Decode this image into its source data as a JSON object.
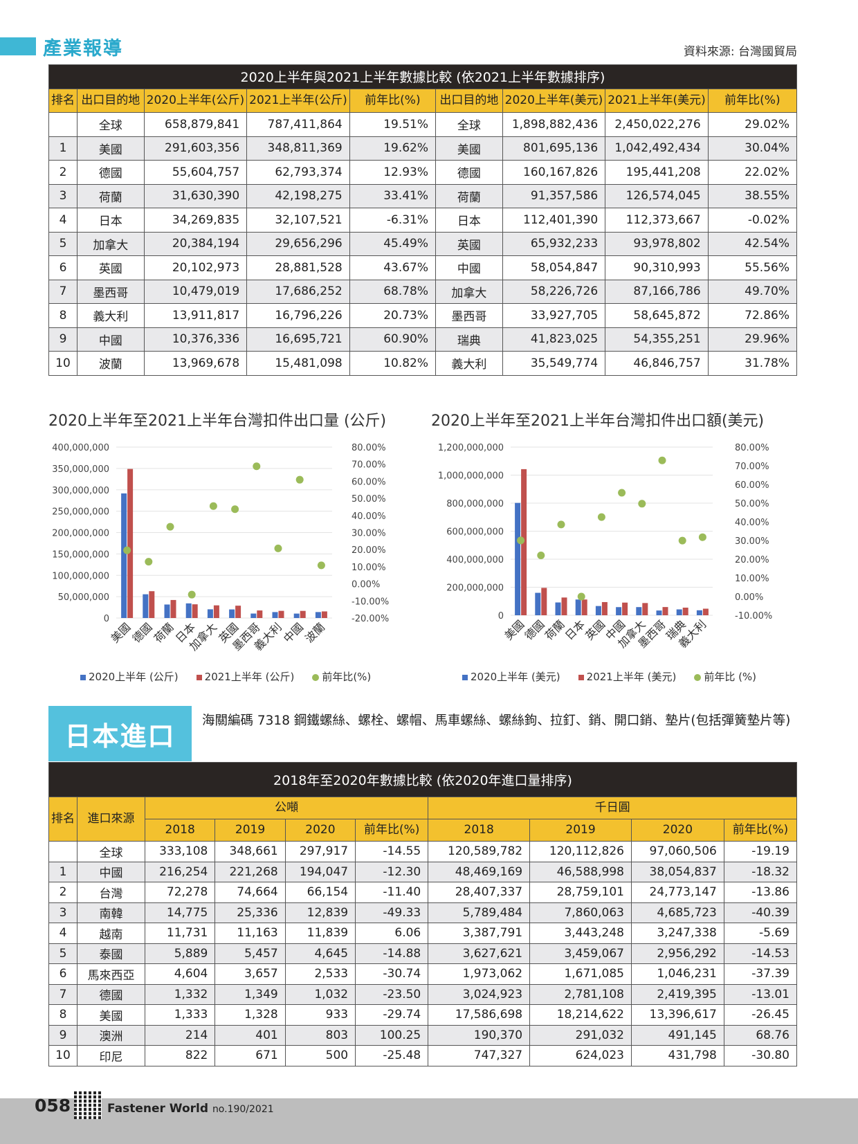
{
  "header": {
    "section": "產業報導",
    "source": "資料來源: 台灣國貿局"
  },
  "table1": {
    "title": "2020上半年與2021上半年數據比較 (依2021上半年數據排序)",
    "headers": [
      "排名",
      "出口目的地",
      "2020上半年(公斤)",
      "2021上半年(公斤)",
      "前年比(%)",
      "出口目的地",
      "2020上半年(美元)",
      "2021上半年(美元)",
      "前年比(%)"
    ],
    "rows": [
      [
        "",
        "全球",
        "658,879,841",
        "787,411,864",
        "19.51%",
        "全球",
        "1,898,882,436",
        "2,450,022,276",
        "29.02%"
      ],
      [
        "1",
        "美國",
        "291,603,356",
        "348,811,369",
        "19.62%",
        "美國",
        "801,695,136",
        "1,042,492,434",
        "30.04%"
      ],
      [
        "2",
        "德國",
        "55,604,757",
        "62,793,374",
        "12.93%",
        "德國",
        "160,167,826",
        "195,441,208",
        "22.02%"
      ],
      [
        "3",
        "荷蘭",
        "31,630,390",
        "42,198,275",
        "33.41%",
        "荷蘭",
        "91,357,586",
        "126,574,045",
        "38.55%"
      ],
      [
        "4",
        "日本",
        "34,269,835",
        "32,107,521",
        "-6.31%",
        "日本",
        "112,401,390",
        "112,373,667",
        "-0.02%"
      ],
      [
        "5",
        "加拿大",
        "20,384,194",
        "29,656,296",
        "45.49%",
        "英國",
        "65,932,233",
        "93,978,802",
        "42.54%"
      ],
      [
        "6",
        "英國",
        "20,102,973",
        "28,881,528",
        "43.67%",
        "中國",
        "58,054,847",
        "90,310,993",
        "55.56%"
      ],
      [
        "7",
        "墨西哥",
        "10,479,019",
        "17,686,252",
        "68.78%",
        "加拿大",
        "58,226,726",
        "87,166,786",
        "49.70%"
      ],
      [
        "8",
        "義大利",
        "13,911,817",
        "16,796,226",
        "20.73%",
        "墨西哥",
        "33,927,705",
        "58,645,872",
        "72.86%"
      ],
      [
        "9",
        "中國",
        "10,376,336",
        "16,695,721",
        "60.90%",
        "瑞典",
        "41,823,025",
        "54,355,251",
        "29.96%"
      ],
      [
        "10",
        "波蘭",
        "13,969,678",
        "15,481,098",
        "10.82%",
        "義大利",
        "35,549,774",
        "46,846,757",
        "31.78%"
      ]
    ]
  },
  "chart_data": [
    {
      "type": "bar",
      "title": "2020上半年至2021上半年台灣扣件出口量 (公斤)",
      "categories": [
        "美國",
        "德國",
        "荷蘭",
        "日本",
        "加拿大",
        "英國",
        "墨西哥",
        "義大利",
        "中國",
        "波蘭"
      ],
      "series": [
        {
          "name": "2020上半年 (公斤)",
          "values": [
            291603356,
            55604757,
            31630390,
            34269835,
            20384194,
            20102973,
            10479019,
            13911817,
            10376336,
            13969678
          ]
        },
        {
          "name": "2021上半年 (公斤)",
          "values": [
            348811369,
            62793374,
            42198275,
            32107521,
            29656296,
            28881528,
            17686252,
            16796226,
            16695721,
            15481098
          ]
        },
        {
          "name": "前年比(%)",
          "axis": "right",
          "values": [
            19.62,
            12.93,
            33.41,
            -6.31,
            45.49,
            43.67,
            68.78,
            20.73,
            60.9,
            10.82
          ]
        }
      ],
      "yticks": [
        "400,000,000",
        "350,000,000",
        "300,000,000",
        "250,000,000",
        "200,000,000",
        "150,000,000",
        "100,000,000",
        "50,000,000",
        "0"
      ],
      "y2ticks": [
        "80.00%",
        "70.00%",
        "60.00%",
        "50.00%",
        "40.00%",
        "30.00%",
        "20.00%",
        "10.00%",
        "0.00%",
        "-10.00%",
        "-20.00%"
      ],
      "ylim": [
        0,
        400000000
      ],
      "y2lim": [
        -20,
        80
      ],
      "legend": "bottom"
    },
    {
      "type": "bar",
      "title": "2020上半年至2021上半年台灣扣件出口額(美元)",
      "categories": [
        "美國",
        "德國",
        "荷蘭",
        "日本",
        "英國",
        "中國",
        "加拿大",
        "墨西哥",
        "瑞典",
        "義大利"
      ],
      "series": [
        {
          "name": "2020上半年 (美元)",
          "values": [
            801695136,
            160167826,
            91357586,
            112401390,
            65932233,
            58054847,
            58226726,
            33927705,
            41823025,
            35549774
          ]
        },
        {
          "name": "2021上半年 (美元)",
          "values": [
            1042492434,
            195441208,
            126574045,
            112373667,
            93978802,
            90310993,
            87166786,
            58645872,
            54355251,
            46846757
          ]
        },
        {
          "name": "前年比 (%)",
          "axis": "right",
          "values": [
            30.04,
            22.02,
            38.55,
            -0.02,
            42.54,
            55.56,
            49.7,
            72.86,
            29.96,
            31.78
          ]
        }
      ],
      "yticks": [
        "1,200,000,000",
        "1,000,000,000",
        "800,000,000",
        "600,000,000",
        "400,000,000",
        "200,000,000",
        "0"
      ],
      "y2ticks": [
        "80.00%",
        "70.00%",
        "60.00%",
        "50.00%",
        "40.00%",
        "30.00%",
        "20.00%",
        "10.00%",
        "0.00%",
        "-10.00%"
      ],
      "ylim": [
        0,
        1200000000
      ],
      "y2lim": [
        -10,
        80
      ],
      "legend": "bottom"
    }
  ],
  "colors": {
    "blue": "#4472c4",
    "red": "#c0504d",
    "green": "#9bbb59",
    "yellow": "#f3c12e",
    "dark": "#2a2523",
    "cyan": "#54c1dd"
  },
  "japan": {
    "label": "日本進口",
    "hs": "海關編碼 7318 鋼鐵螺絲、螺栓、螺帽、馬車螺絲、螺絲鉤、拉釘、銷、開口銷、墊片(包括彈簧墊片等)",
    "table": {
      "title": "2018年至2020年數據比較 (依2020年進口量排序)",
      "group1": "公噸",
      "group2": "千日圓",
      "headers": [
        "排名",
        "進口來源",
        "2018",
        "2019",
        "2020",
        "前年比(%)",
        "2018",
        "2019",
        "2020",
        "前年比(%)"
      ],
      "rows": [
        [
          "",
          "全球",
          "333,108",
          "348,661",
          "297,917",
          "-14.55",
          "120,589,782",
          "120,112,826",
          "97,060,506",
          "-19.19"
        ],
        [
          "1",
          "中國",
          "216,254",
          "221,268",
          "194,047",
          "-12.30",
          "48,469,169",
          "46,588,998",
          "38,054,837",
          "-18.32"
        ],
        [
          "2",
          "台灣",
          "72,278",
          "74,664",
          "66,154",
          "-11.40",
          "28,407,337",
          "28,759,101",
          "24,773,147",
          "-13.86"
        ],
        [
          "3",
          "南韓",
          "14,775",
          "25,336",
          "12,839",
          "-49.33",
          "5,789,484",
          "7,860,063",
          "4,685,723",
          "-40.39"
        ],
        [
          "4",
          "越南",
          "11,731",
          "11,163",
          "11,839",
          "6.06",
          "3,387,791",
          "3,443,248",
          "3,247,338",
          "-5.69"
        ],
        [
          "5",
          "泰國",
          "5,889",
          "5,457",
          "4,645",
          "-14.88",
          "3,627,621",
          "3,459,067",
          "2,956,292",
          "-14.53"
        ],
        [
          "6",
          "馬來西亞",
          "4,604",
          "3,657",
          "2,533",
          "-30.74",
          "1,973,062",
          "1,671,085",
          "1,046,231",
          "-37.39"
        ],
        [
          "7",
          "德國",
          "1,332",
          "1,349",
          "1,032",
          "-23.50",
          "3,024,923",
          "2,781,108",
          "2,419,395",
          "-13.01"
        ],
        [
          "8",
          "美國",
          "1,333",
          "1,328",
          "933",
          "-29.74",
          "17,586,698",
          "18,214,622",
          "13,396,617",
          "-26.45"
        ],
        [
          "9",
          "澳洲",
          "214",
          "401",
          "803",
          "100.25",
          "190,370",
          "291,032",
          "491,145",
          "68.76"
        ],
        [
          "10",
          "印尼",
          "822",
          "671",
          "500",
          "-25.48",
          "747,327",
          "624,023",
          "431,798",
          "-30.80"
        ]
      ]
    }
  },
  "footer": {
    "page": "058",
    "magazine": "Fastener World",
    "issue": "no.190/2021"
  }
}
